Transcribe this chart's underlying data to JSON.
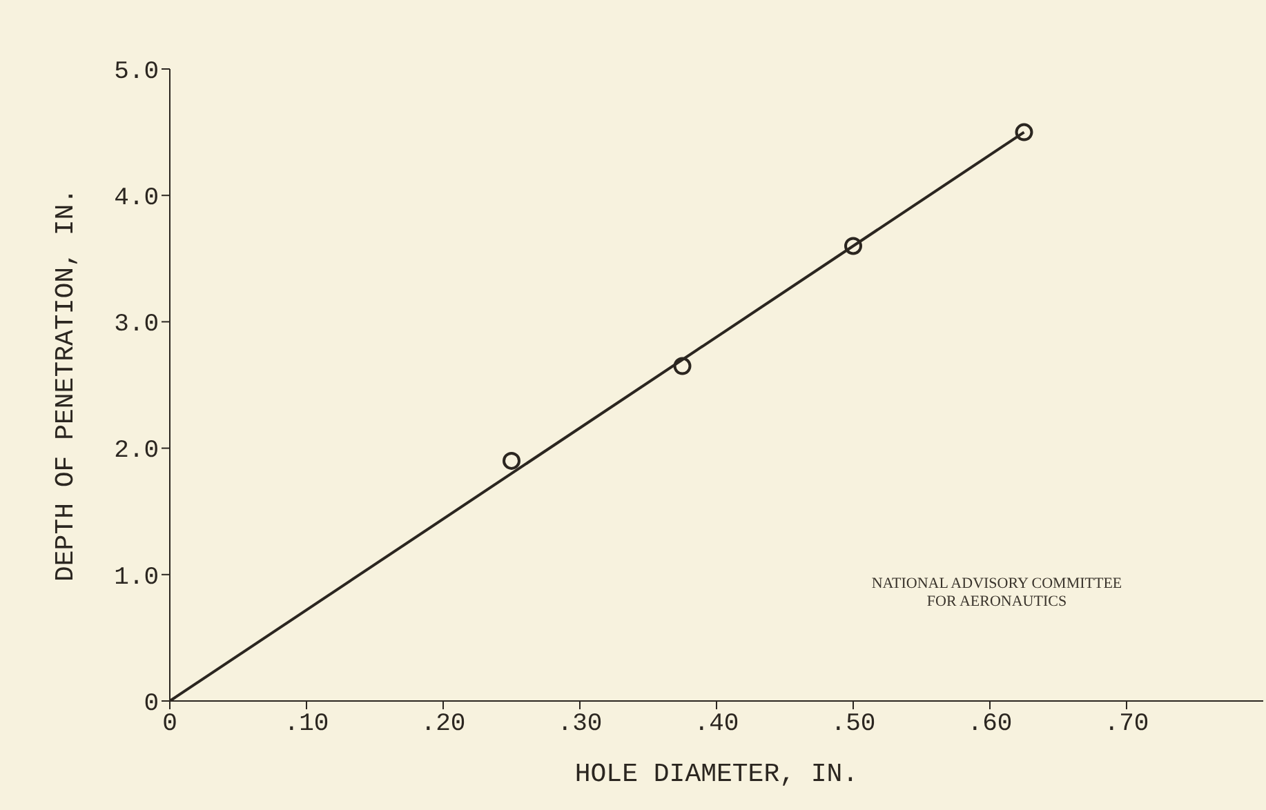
{
  "chart_data": {
    "type": "scatter",
    "xlabel": "HOLE DIAMETER, IN.",
    "ylabel": "DEPTH OF PENETRATION, IN.",
    "xlim": [
      0,
      0.8
    ],
    "xticks": [
      0,
      {
        "value": 0.1,
        "label": ".10"
      },
      {
        "value": 0.2,
        "label": ".20"
      },
      {
        "value": 0.3,
        "label": ".30"
      },
      {
        "value": 0.4,
        "label": ".40"
      },
      {
        "value": 0.5,
        "label": ".50"
      },
      {
        "value": 0.6,
        "label": ".60"
      },
      {
        "value": 0.7,
        "label": ".70"
      }
    ],
    "ylim": [
      0,
      5
    ],
    "yticks": [
      0,
      {
        "value": 1,
        "label": "1.0"
      },
      {
        "value": 2,
        "label": "2.0"
      },
      {
        "value": 3,
        "label": "3.0"
      },
      {
        "value": 4,
        "label": "4.0"
      },
      {
        "value": 5,
        "label": "5.0"
      }
    ],
    "grid": false,
    "legend": false,
    "series": [
      {
        "color": "#2b2620",
        "marker": "circle",
        "x": [
          0.25,
          0.375,
          0.5,
          0.625
        ],
        "values": [
          1.9,
          2.65,
          3.6,
          4.5
        ]
      },
      {
        "type": "line",
        "color": "#2b2620",
        "line_style": "solid",
        "marker": "none",
        "x": [
          0,
          0.625
        ],
        "values": [
          0,
          4.5
        ]
      }
    ],
    "annotations": [
      "NATIONAL ADVISORY COMMITTEE\nFOR AERONAUTICS"
    ]
  }
}
